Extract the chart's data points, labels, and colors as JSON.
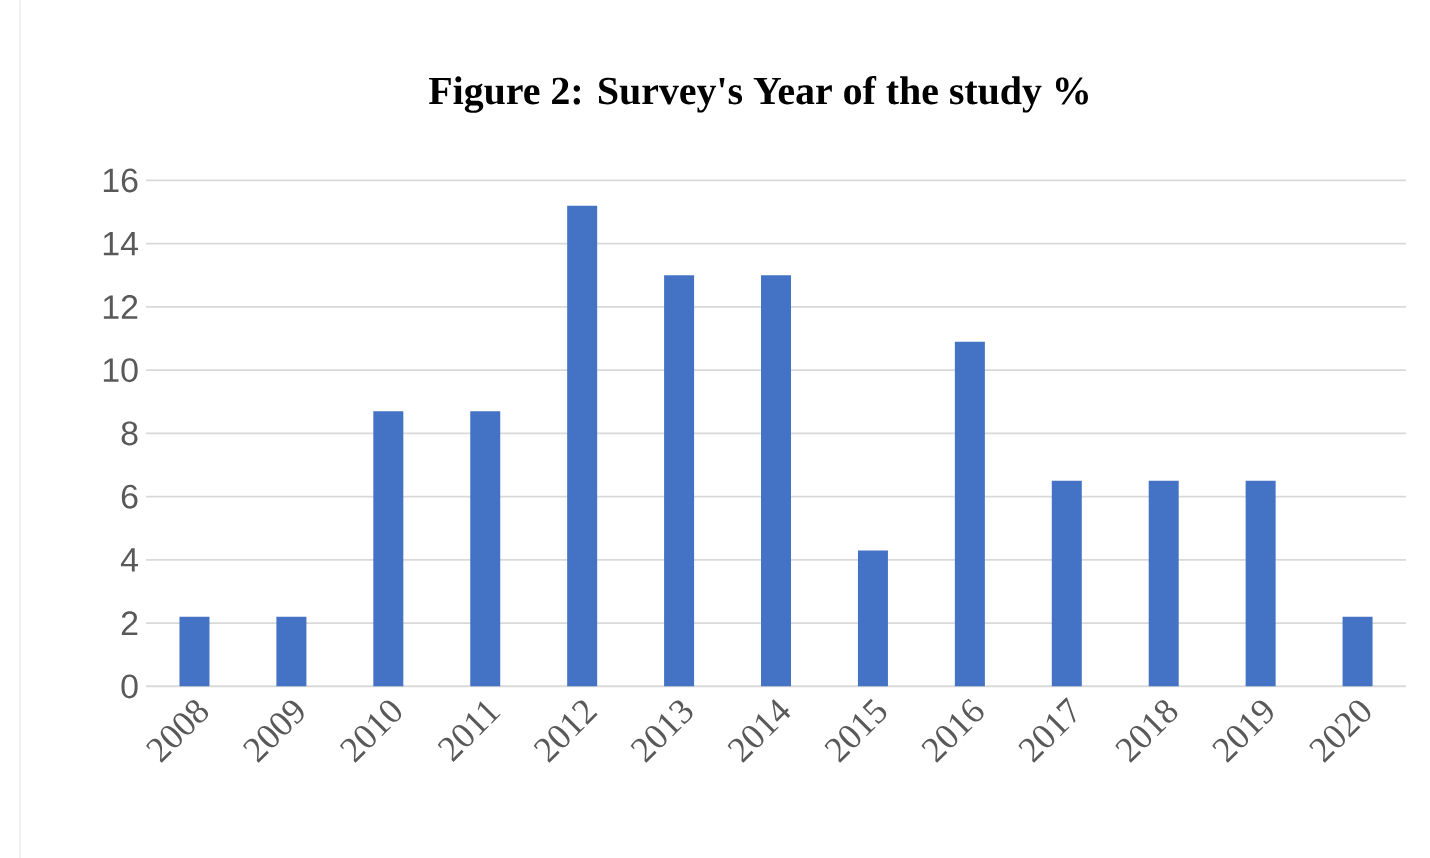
{
  "chart_data": {
    "type": "bar",
    "title": "Figure 2:  Survey's Year of the study %",
    "categories": [
      "2008",
      "2009",
      "2010",
      "2011",
      "2012",
      "2013",
      "2014",
      "2015",
      "2016",
      "2017",
      "2018",
      "2019",
      "2020"
    ],
    "values": [
      2.2,
      2.2,
      8.7,
      8.7,
      15.2,
      13.0,
      13.0,
      4.3,
      10.9,
      6.5,
      6.5,
      6.5,
      2.2
    ],
    "color": "#4472c4",
    "ylim": [
      0,
      16
    ],
    "yticks": [
      0,
      2,
      4,
      6,
      8,
      10,
      12,
      14,
      16
    ],
    "grid": "y"
  }
}
